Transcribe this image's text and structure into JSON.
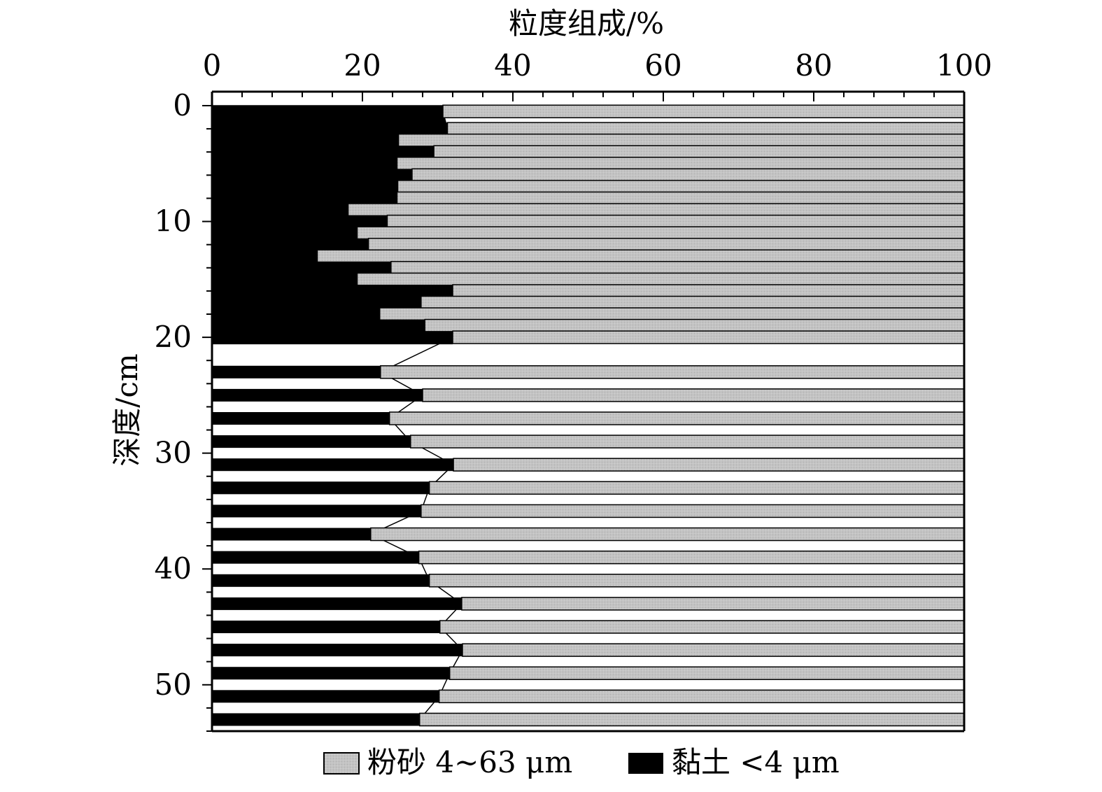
{
  "chart_data": {
    "type": "bar",
    "orientation": "horizontal-stacked",
    "xlabel": "粒度组成/%",
    "ylabel": "深度/cm",
    "xlim": [
      0,
      100
    ],
    "ylim": [
      0,
      54
    ],
    "x_ticks": [
      "0",
      "20",
      "40",
      "60",
      "80",
      "100"
    ],
    "y_ticks": [
      "0",
      "10",
      "20",
      "30",
      "40",
      "50"
    ],
    "y_axis_inverted": true,
    "x_axis_position": "top",
    "legend_position": "bottom",
    "series": [
      {
        "name": "黏土 <4 μm",
        "color": "#000000",
        "values": [
          30.7,
          31.3,
          24.8,
          29.5,
          24.6,
          26.6,
          24.7,
          24.6,
          18.1,
          23.3,
          19.3,
          20.8,
          14.0,
          23.8,
          19.3,
          32.0,
          27.8,
          22.3,
          28.3,
          32.0,
          22.4,
          28.0,
          23.6,
          26.4,
          32.1,
          28.9,
          27.8,
          21.1,
          27.5,
          28.9,
          33.2,
          30.3,
          33.3,
          31.6,
          30.2,
          27.6
        ]
      },
      {
        "name": "粉砂 4~63 μm",
        "color": "#c3c3c3",
        "values": [
          69.3,
          68.7,
          75.2,
          70.5,
          75.4,
          73.4,
          75.3,
          75.4,
          81.9,
          76.7,
          80.7,
          79.2,
          86.0,
          76.2,
          80.7,
          68.0,
          72.2,
          77.7,
          71.7,
          68.0,
          77.6,
          72.0,
          76.4,
          73.6,
          67.9,
          71.1,
          72.2,
          78.9,
          72.5,
          71.1,
          66.8,
          69.7,
          66.7,
          68.4,
          69.8,
          72.4
        ]
      }
    ],
    "depths": [
      0.5,
      2,
      3,
      4,
      5,
      6,
      7,
      8,
      9,
      10,
      11,
      12,
      13,
      14,
      15,
      16,
      17,
      18,
      19,
      20,
      23,
      25,
      27,
      29,
      31,
      33,
      35,
      37,
      39,
      41,
      43,
      45,
      47,
      49,
      51,
      53
    ],
    "legend": [
      {
        "label": "粉砂 4~63 μm",
        "color": "#c3c3c3"
      },
      {
        "label": "黏土 <4 μm",
        "color": "#000000"
      }
    ]
  }
}
